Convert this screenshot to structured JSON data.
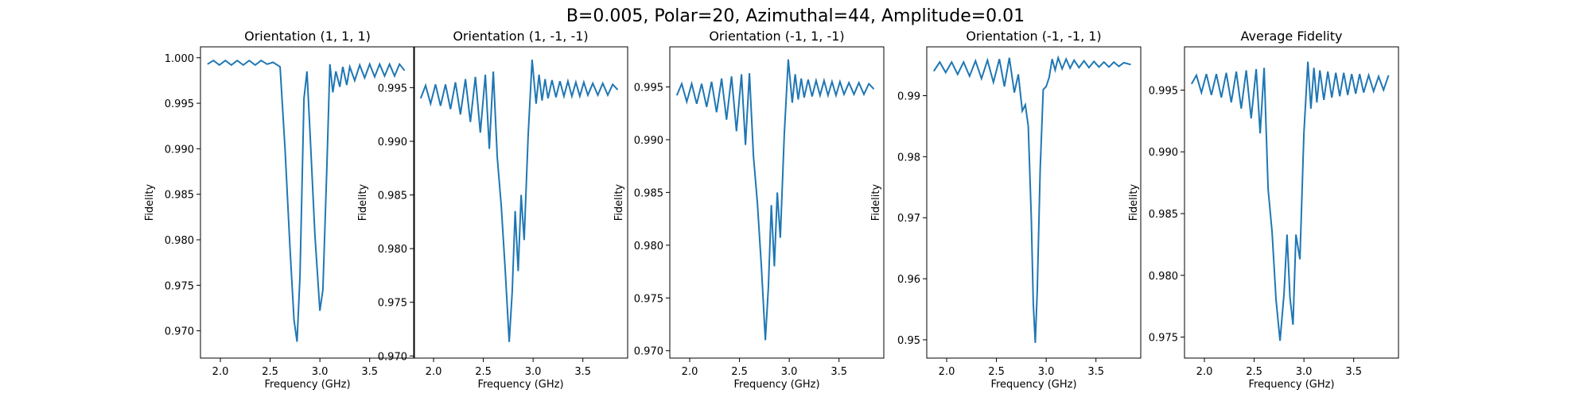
{
  "figure_title": "B=0.005, Polar=20, Azimuthal=44, Amplitude=0.01",
  "chart_data": [
    {
      "type": "line",
      "title": "Orientation (1, 1, 1)",
      "xlabel": "Frequency (GHz)",
      "ylabel": "Fidelity",
      "xlim": [
        1.8,
        3.95
      ],
      "ylim": [
        0.967,
        1.0012
      ],
      "xticks": [
        "2.0",
        "2.5",
        "3.0",
        "3.5"
      ],
      "xtick_values": [
        2.0,
        2.5,
        3.0,
        3.5
      ],
      "yticks": [
        "0.970",
        "0.975",
        "0.980",
        "0.985",
        "0.990",
        "0.995",
        "1.000"
      ],
      "ytick_values": [
        0.97,
        0.975,
        0.98,
        0.985,
        0.99,
        0.995,
        1.0
      ],
      "series": [
        {
          "x": [
            1.87,
            1.93,
            1.99,
            2.05,
            2.11,
            2.17,
            2.23,
            2.29,
            2.35,
            2.41,
            2.47,
            2.53,
            2.6,
            2.65,
            2.7,
            2.74,
            2.77,
            2.8,
            2.84,
            2.87,
            2.9,
            2.95,
            3.0,
            3.03,
            3.07,
            3.1,
            3.13,
            3.16,
            3.2,
            3.23,
            3.27,
            3.3,
            3.35,
            3.4,
            3.45,
            3.5,
            3.55,
            3.6,
            3.65,
            3.7,
            3.75,
            3.8,
            3.85
          ],
          "y": [
            0.9993,
            0.9997,
            0.9992,
            0.9997,
            0.9992,
            0.9997,
            0.9992,
            0.9997,
            0.9992,
            0.9997,
            0.9993,
            0.9995,
            0.999,
            0.99,
            0.979,
            0.9712,
            0.9688,
            0.976,
            0.9955,
            0.9985,
            0.992,
            0.9805,
            0.9722,
            0.9745,
            0.988,
            0.9993,
            0.9962,
            0.9985,
            0.9968,
            0.999,
            0.997,
            0.999,
            0.9975,
            0.9992,
            0.9978,
            0.9993,
            0.9979,
            0.9993,
            0.998,
            0.9993,
            0.998,
            0.9993,
            0.9986
          ]
        }
      ]
    },
    {
      "type": "line",
      "title": "Orientation (1, -1, -1)",
      "xlabel": "Frequency (GHz)",
      "ylabel": "Fidelity",
      "xlim": [
        1.8,
        3.95
      ],
      "ylim": [
        0.9698,
        0.9988
      ],
      "xticks": [
        "2.0",
        "2.5",
        "3.0",
        "3.5"
      ],
      "xtick_values": [
        2.0,
        2.5,
        3.0,
        3.5
      ],
      "yticks": [
        "0.970",
        "0.975",
        "0.980",
        "0.985",
        "0.990",
        "0.995"
      ],
      "ytick_values": [
        0.97,
        0.975,
        0.98,
        0.985,
        0.99,
        0.995
      ],
      "series": [
        {
          "x": [
            1.87,
            1.92,
            1.97,
            2.02,
            2.07,
            2.12,
            2.17,
            2.22,
            2.27,
            2.32,
            2.37,
            2.42,
            2.47,
            2.52,
            2.56,
            2.6,
            2.64,
            2.68,
            2.72,
            2.76,
            2.79,
            2.82,
            2.85,
            2.88,
            2.91,
            2.95,
            2.99,
            3.03,
            3.06,
            3.09,
            3.12,
            3.15,
            3.19,
            3.23,
            3.27,
            3.31,
            3.35,
            3.39,
            3.43,
            3.47,
            3.51,
            3.55,
            3.6,
            3.65,
            3.7,
            3.75,
            3.8,
            3.85
          ],
          "y": [
            0.994,
            0.9952,
            0.9935,
            0.9953,
            0.9933,
            0.9953,
            0.993,
            0.9955,
            0.9925,
            0.9958,
            0.9918,
            0.996,
            0.9908,
            0.9962,
            0.9893,
            0.9965,
            0.9885,
            0.984,
            0.978,
            0.9713,
            0.976,
            0.9835,
            0.9779,
            0.985,
            0.9808,
            0.9905,
            0.9976,
            0.9935,
            0.9962,
            0.9938,
            0.9958,
            0.994,
            0.9957,
            0.9941,
            0.9956,
            0.9942,
            0.9956,
            0.9942,
            0.9955,
            0.9942,
            0.9955,
            0.9943,
            0.9954,
            0.9943,
            0.9954,
            0.9943,
            0.9953,
            0.9948
          ]
        }
      ]
    },
    {
      "type": "line",
      "title": "Orientation (-1, 1, -1)",
      "xlabel": "Frequency (GHz)",
      "ylabel": "Fidelity",
      "xlim": [
        1.8,
        3.95
      ],
      "ylim": [
        0.9693,
        0.9988
      ],
      "xticks": [
        "2.0",
        "2.5",
        "3.0",
        "3.5"
      ],
      "xtick_values": [
        2.0,
        2.5,
        3.0,
        3.5
      ],
      "yticks": [
        "0.970",
        "0.975",
        "0.980",
        "0.985",
        "0.990",
        "0.995"
      ],
      "ytick_values": [
        0.97,
        0.975,
        0.98,
        0.985,
        0.99,
        0.995
      ],
      "series": [
        {
          "x": [
            1.87,
            1.92,
            1.97,
            2.02,
            2.07,
            2.12,
            2.17,
            2.22,
            2.27,
            2.32,
            2.37,
            2.42,
            2.47,
            2.52,
            2.56,
            2.6,
            2.64,
            2.68,
            2.72,
            2.76,
            2.79,
            2.82,
            2.85,
            2.88,
            2.91,
            2.95,
            2.99,
            3.03,
            3.06,
            3.09,
            3.12,
            3.15,
            3.19,
            3.23,
            3.27,
            3.31,
            3.35,
            3.39,
            3.43,
            3.47,
            3.51,
            3.55,
            3.6,
            3.65,
            3.7,
            3.75,
            3.8,
            3.85
          ],
          "y": [
            0.9942,
            0.9953,
            0.9936,
            0.9953,
            0.9934,
            0.9953,
            0.9931,
            0.9955,
            0.9926,
            0.9958,
            0.9919,
            0.996,
            0.9908,
            0.9962,
            0.9895,
            0.9963,
            0.9885,
            0.984,
            0.978,
            0.971,
            0.976,
            0.9838,
            0.978,
            0.985,
            0.9807,
            0.9905,
            0.9976,
            0.9935,
            0.9962,
            0.9938,
            0.9958,
            0.994,
            0.9957,
            0.9941,
            0.9956,
            0.9942,
            0.9956,
            0.9942,
            0.9955,
            0.9942,
            0.9955,
            0.9943,
            0.9954,
            0.9943,
            0.9954,
            0.9943,
            0.9953,
            0.9948
          ]
        }
      ]
    },
    {
      "type": "line",
      "title": "Orientation (-1, -1, 1)",
      "xlabel": "Frequency (GHz)",
      "ylabel": "Fidelity",
      "xlim": [
        1.8,
        3.95
      ],
      "ylim": [
        0.947,
        0.998
      ],
      "xticks": [
        "2.0",
        "2.5",
        "3.0",
        "3.5"
      ],
      "xtick_values": [
        2.0,
        2.5,
        3.0,
        3.5
      ],
      "yticks": [
        "0.95",
        "0.96",
        "0.97",
        "0.98",
        "0.99"
      ],
      "ytick_values": [
        0.95,
        0.96,
        0.97,
        0.98,
        0.99
      ],
      "series": [
        {
          "x": [
            1.87,
            1.93,
            1.99,
            2.05,
            2.11,
            2.17,
            2.23,
            2.29,
            2.35,
            2.41,
            2.47,
            2.53,
            2.58,
            2.63,
            2.68,
            2.72,
            2.76,
            2.79,
            2.82,
            2.85,
            2.87,
            2.89,
            2.91,
            2.94,
            2.97,
            3.0,
            3.03,
            3.06,
            3.09,
            3.12,
            3.16,
            3.2,
            3.24,
            3.28,
            3.33,
            3.38,
            3.43,
            3.48,
            3.53,
            3.58,
            3.63,
            3.68,
            3.73,
            3.78,
            3.85
          ],
          "y": [
            0.994,
            0.9955,
            0.9938,
            0.9955,
            0.9935,
            0.9955,
            0.9932,
            0.9957,
            0.9928,
            0.9958,
            0.9922,
            0.996,
            0.9915,
            0.9962,
            0.9905,
            0.9935,
            0.9875,
            0.9885,
            0.985,
            0.97,
            0.956,
            0.9495,
            0.958,
            0.978,
            0.991,
            0.9915,
            0.993,
            0.996,
            0.9942,
            0.9962,
            0.9944,
            0.996,
            0.9945,
            0.9958,
            0.9946,
            0.9957,
            0.9946,
            0.9956,
            0.9947,
            0.9955,
            0.9947,
            0.9955,
            0.9948,
            0.9954,
            0.9951
          ]
        }
      ]
    },
    {
      "type": "line",
      "title": "Average Fidelity",
      "xlabel": "Frequency (GHz)",
      "ylabel": "Fidelity",
      "xlim": [
        1.8,
        3.95
      ],
      "ylim": [
        0.9733,
        0.9985
      ],
      "xticks": [
        "2.0",
        "2.5",
        "3.0",
        "3.5"
      ],
      "xtick_values": [
        2.0,
        2.5,
        3.0,
        3.5
      ],
      "yticks": [
        "0.975",
        "0.980",
        "0.985",
        "0.990",
        "0.995"
      ],
      "ytick_values": [
        0.975,
        0.98,
        0.985,
        0.99,
        0.995
      ],
      "series": [
        {
          "x": [
            1.87,
            1.92,
            1.97,
            2.02,
            2.07,
            2.12,
            2.17,
            2.22,
            2.27,
            2.32,
            2.37,
            2.42,
            2.47,
            2.52,
            2.56,
            2.6,
            2.64,
            2.68,
            2.72,
            2.76,
            2.8,
            2.83,
            2.86,
            2.89,
            2.92,
            2.96,
            3.0,
            3.04,
            3.07,
            3.1,
            3.13,
            3.16,
            3.2,
            3.24,
            3.28,
            3.32,
            3.36,
            3.4,
            3.44,
            3.48,
            3.52,
            3.56,
            3.6,
            3.65,
            3.7,
            3.75,
            3.8,
            3.85
          ],
          "y": [
            0.9955,
            0.9962,
            0.9948,
            0.9963,
            0.9946,
            0.9963,
            0.9944,
            0.9964,
            0.994,
            0.9965,
            0.9935,
            0.9966,
            0.9927,
            0.9967,
            0.9915,
            0.9968,
            0.987,
            0.9835,
            0.978,
            0.9747,
            0.9785,
            0.9833,
            0.9782,
            0.976,
            0.9833,
            0.9813,
            0.9915,
            0.9973,
            0.9935,
            0.9968,
            0.994,
            0.9966,
            0.9942,
            0.9965,
            0.9944,
            0.9964,
            0.9945,
            0.9964,
            0.9946,
            0.9963,
            0.9947,
            0.9963,
            0.9948,
            0.9962,
            0.9949,
            0.9961,
            0.995,
            0.9962
          ]
        }
      ]
    }
  ]
}
